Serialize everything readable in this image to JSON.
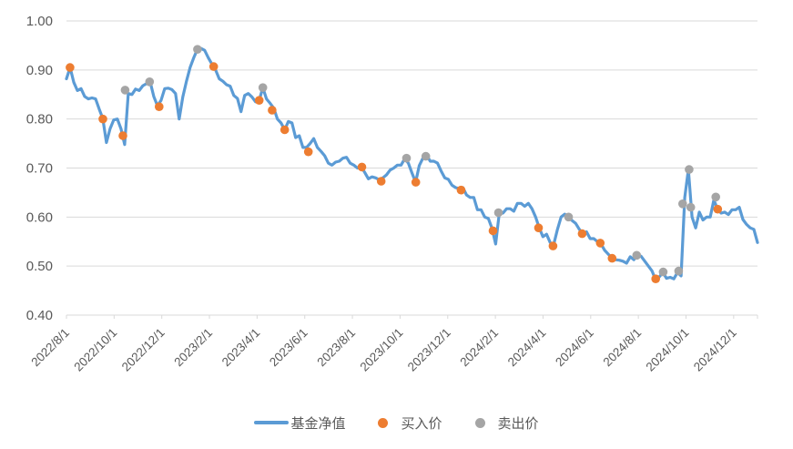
{
  "chart_data": {
    "type": "line",
    "title": "",
    "x_axis": {
      "unit": "months since 2022/8/1",
      "range_months": [
        0,
        29
      ],
      "tick_positions_months": [
        0,
        2,
        4,
        6,
        8,
        10,
        12,
        14,
        16,
        18,
        20,
        22,
        24,
        26,
        28
      ],
      "tick_labels": [
        "2022/8/1",
        "2022/10/1",
        "2022/12/1",
        "2023/2/1",
        "2023/4/1",
        "2023/6/1",
        "2023/8/1",
        "2023/10/1",
        "2023/12/1",
        "2024/2/1",
        "2024/4/1",
        "2024/6/1",
        "2024/8/1",
        "2024/10/1",
        "2024/12/1"
      ]
    },
    "y_axis": {
      "range": [
        0.4,
        1.0
      ],
      "tick_values": [
        0.4,
        0.5,
        0.6,
        0.7,
        0.8,
        0.9,
        1.0
      ],
      "tick_labels": [
        "0.40",
        "0.50",
        "0.60",
        "0.70",
        "0.80",
        "0.90",
        "1.00"
      ]
    },
    "legend": {
      "position": "bottom",
      "entries": [
        "基金净值",
        "买入价",
        "卖出价"
      ]
    },
    "colors": {
      "line": "#5B9BD5",
      "buy": "#ED7D31",
      "sell": "#A5A5A5",
      "grid": "#D9D9D9",
      "axis_text": "#595959",
      "background": "#FFFFFF"
    },
    "series": [
      {
        "name": "基金净值",
        "type": "line",
        "color": "#5B9BD5",
        "x_start_months": 0,
        "x_step_months": 0.152632,
        "values": [
          0.882,
          0.905,
          0.875,
          0.858,
          0.862,
          0.846,
          0.841,
          0.843,
          0.841,
          0.82,
          0.801,
          0.752,
          0.78,
          0.798,
          0.8,
          0.78,
          0.748,
          0.852,
          0.85,
          0.861,
          0.858,
          0.868,
          0.872,
          0.876,
          0.846,
          0.827,
          0.838,
          0.862,
          0.863,
          0.86,
          0.852,
          0.8,
          0.845,
          0.877,
          0.905,
          0.925,
          0.942,
          0.944,
          0.94,
          0.925,
          0.912,
          0.9,
          0.882,
          0.877,
          0.87,
          0.867,
          0.848,
          0.842,
          0.815,
          0.848,
          0.852,
          0.845,
          0.835,
          0.838,
          0.864,
          0.841,
          0.832,
          0.822,
          0.8,
          0.792,
          0.778,
          0.795,
          0.792,
          0.762,
          0.766,
          0.742,
          0.742,
          0.75,
          0.76,
          0.742,
          0.734,
          0.725,
          0.71,
          0.706,
          0.712,
          0.714,
          0.72,
          0.722,
          0.71,
          0.706,
          0.7,
          0.703,
          0.691,
          0.678,
          0.682,
          0.68,
          0.676,
          0.68,
          0.686,
          0.696,
          0.7,
          0.706,
          0.706,
          0.719,
          0.71,
          0.69,
          0.671,
          0.705,
          0.72,
          0.727,
          0.714,
          0.714,
          0.71,
          0.694,
          0.68,
          0.677,
          0.665,
          0.66,
          0.658,
          0.66,
          0.645,
          0.64,
          0.64,
          0.615,
          0.615,
          0.6,
          0.597,
          0.577,
          0.545,
          0.608,
          0.608,
          0.617,
          0.617,
          0.612,
          0.628,
          0.628,
          0.622,
          0.628,
          0.617,
          0.6,
          0.578,
          0.56,
          0.565,
          0.548,
          0.545,
          0.575,
          0.6,
          0.606,
          0.6,
          0.593,
          0.587,
          0.575,
          0.566,
          0.57,
          0.556,
          0.556,
          0.55,
          0.545,
          0.532,
          0.524,
          0.516,
          0.513,
          0.512,
          0.51,
          0.506,
          0.519,
          0.513,
          0.523,
          0.52,
          0.51,
          0.5,
          0.49,
          0.472,
          0.478,
          0.487,
          0.475,
          0.477,
          0.474,
          0.487,
          0.48,
          0.64,
          0.697,
          0.6,
          0.578,
          0.61,
          0.594,
          0.6,
          0.6,
          0.635,
          0.616,
          0.608,
          0.61,
          0.605,
          0.615,
          0.615,
          0.62,
          0.595,
          0.585,
          0.578,
          0.575,
          0.548
        ]
      },
      {
        "name": "买入价",
        "type": "scatter",
        "color": "#ED7D31",
        "points": [
          [
            0.15,
            0.905
          ],
          [
            1.53,
            0.8
          ],
          [
            2.37,
            0.766
          ],
          [
            3.89,
            0.825
          ],
          [
            6.18,
            0.907
          ],
          [
            8.09,
            0.838
          ],
          [
            8.63,
            0.818
          ],
          [
            9.16,
            0.778
          ],
          [
            10.15,
            0.733
          ],
          [
            12.4,
            0.702
          ],
          [
            13.21,
            0.673
          ],
          [
            14.66,
            0.671
          ],
          [
            16.56,
            0.655
          ],
          [
            17.9,
            0.572
          ],
          [
            19.81,
            0.578
          ],
          [
            20.42,
            0.541
          ],
          [
            21.64,
            0.566
          ],
          [
            22.4,
            0.547
          ],
          [
            22.9,
            0.516
          ],
          [
            24.73,
            0.474
          ],
          [
            27.33,
            0.616
          ]
        ]
      },
      {
        "name": "卖出价",
        "type": "scatter",
        "color": "#A5A5A5",
        "points": [
          [
            2.46,
            0.859
          ],
          [
            3.49,
            0.876
          ],
          [
            5.5,
            0.942
          ],
          [
            8.24,
            0.864
          ],
          [
            14.27,
            0.72
          ],
          [
            15.08,
            0.724
          ],
          [
            18.13,
            0.609
          ],
          [
            21.07,
            0.6
          ],
          [
            23.93,
            0.522
          ],
          [
            25.04,
            0.488
          ],
          [
            25.69,
            0.49
          ],
          [
            25.86,
            0.627
          ],
          [
            26.13,
            0.697
          ],
          [
            26.2,
            0.62
          ],
          [
            27.25,
            0.641
          ]
        ]
      }
    ]
  }
}
